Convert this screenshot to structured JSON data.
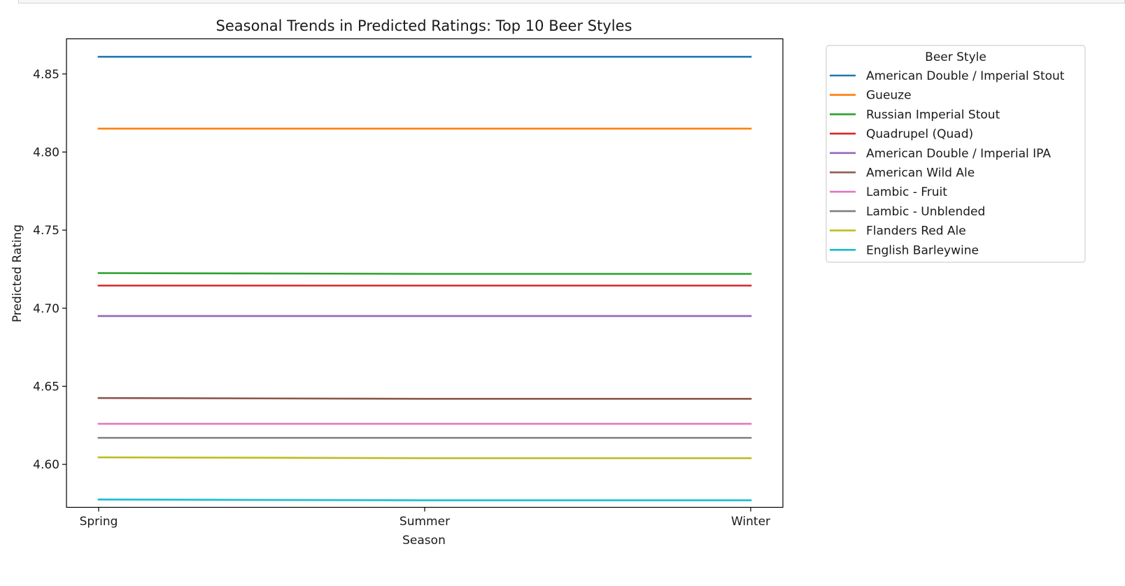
{
  "chart_data": {
    "type": "line",
    "title": "Seasonal Trends in Predicted Ratings: Top 10 Beer Styles",
    "xlabel": "Season",
    "ylabel": "Predicted Rating",
    "categories": [
      "Spring",
      "Summer",
      "Winter"
    ],
    "ylim": [
      4.5725,
      4.8725
    ],
    "yticks": [
      "4.60",
      "4.65",
      "4.70",
      "4.75",
      "4.80",
      "4.85"
    ],
    "grid": false,
    "legend": {
      "title": "Beer Style",
      "placement": "outside-top-right"
    },
    "series": [
      {
        "name": "American Double / Imperial Stout",
        "color": "#1f77b4",
        "values": [
          4.861,
          4.861,
          4.861
        ]
      },
      {
        "name": "Gueuze",
        "color": "#ff7f0e",
        "values": [
          4.815,
          4.815,
          4.815
        ]
      },
      {
        "name": "Russian Imperial Stout",
        "color": "#2ca02c",
        "values": [
          4.7225,
          4.722,
          4.722
        ]
      },
      {
        "name": "Quadrupel (Quad)",
        "color": "#d62728",
        "values": [
          4.7145,
          4.7145,
          4.7145
        ]
      },
      {
        "name": "American Double / Imperial IPA",
        "color": "#9467bd",
        "values": [
          4.695,
          4.695,
          4.695
        ]
      },
      {
        "name": "American Wild Ale",
        "color": "#8c564b",
        "values": [
          4.6425,
          4.642,
          4.642
        ]
      },
      {
        "name": "Lambic - Fruit",
        "color": "#e377c2",
        "values": [
          4.626,
          4.626,
          4.626
        ]
      },
      {
        "name": "Lambic - Unblended",
        "color": "#7f7f7f",
        "values": [
          4.617,
          4.617,
          4.617
        ]
      },
      {
        "name": "Flanders Red Ale",
        "color": "#bcbd22",
        "values": [
          4.6045,
          4.604,
          4.604
        ]
      },
      {
        "name": "English Barleywine",
        "color": "#17becf",
        "values": [
          4.5775,
          4.577,
          4.577
        ]
      }
    ]
  }
}
